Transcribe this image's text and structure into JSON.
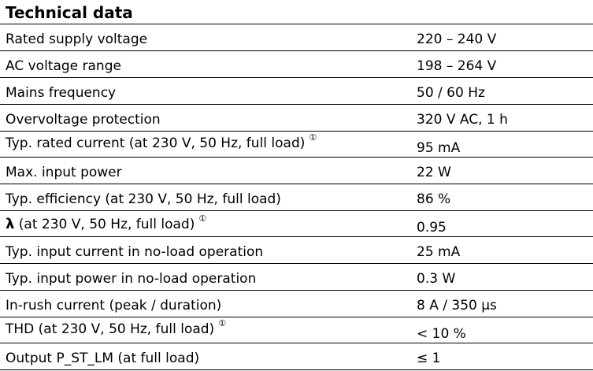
{
  "title": "Technical data",
  "note_symbol": "①",
  "rows": [
    {
      "label": "Rated supply voltage",
      "value": "220 – 240 V"
    },
    {
      "label": "AC voltage range",
      "value": "198 – 264 V"
    },
    {
      "label": "Mains frequency",
      "value": "50 / 60 Hz"
    },
    {
      "label": "Overvoltage protection",
      "value": "320 V AC, 1 h"
    },
    {
      "label": "Typ. rated current (at 230 V, 50 Hz, full load)",
      "value": "95 mA"
    },
    {
      "label": "Max. input power",
      "value": "22 W"
    },
    {
      "label": "Typ. efficiency (at 230 V, 50 Hz, full load)",
      "value": "86 %"
    },
    {
      "label_symbol": "λ",
      "label": " (at 230 V, 50 Hz, full load)",
      "value": "0.95"
    },
    {
      "label": "Typ. input current in no-load operation",
      "value": "25 mA"
    },
    {
      "label": "Typ. input power in no-load operation",
      "value": "0.3 W"
    },
    {
      "label": "In-rush current (peak / duration)",
      "value": "8 A / 350 µs"
    },
    {
      "label": "THD (at 230 V, 50 Hz, full load)",
      "value": "< 10 %"
    },
    {
      "label": "Output P_ST_LM (at full load)",
      "value": "≤ 1"
    }
  ]
}
